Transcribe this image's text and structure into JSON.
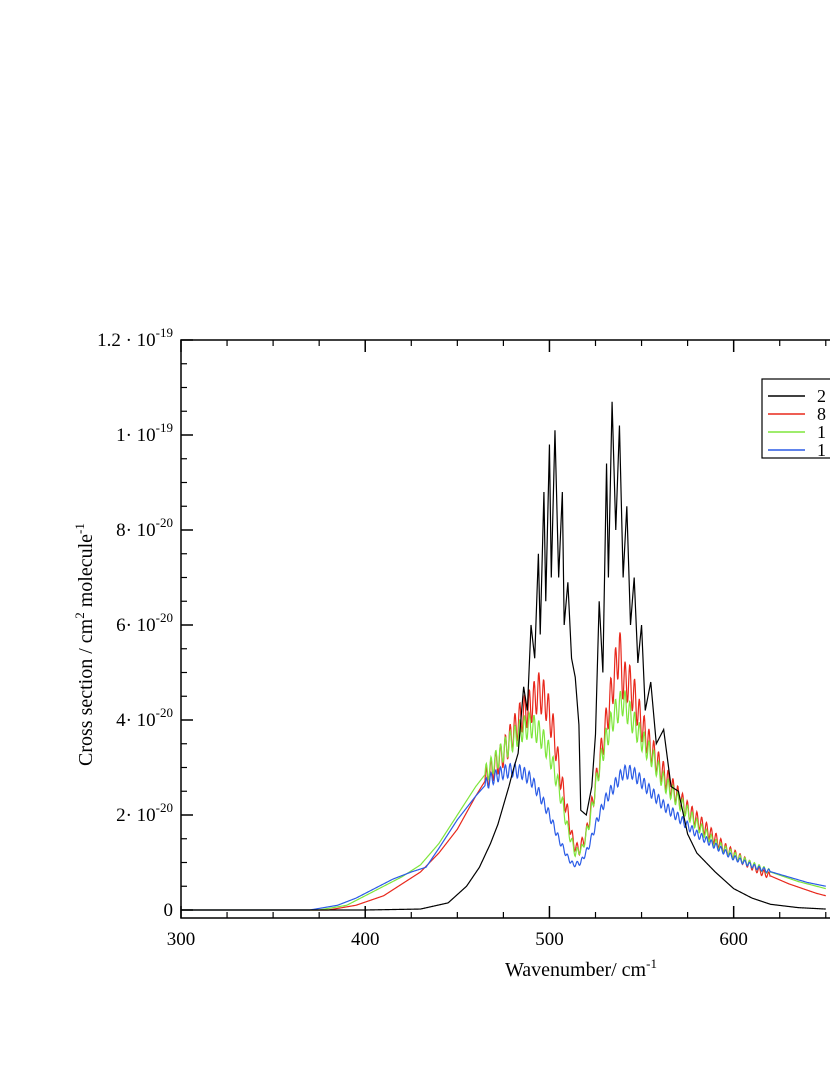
{
  "chart_data": {
    "type": "line",
    "title": "",
    "xlabel": {
      "base": "Wavenumber/ cm",
      "sup": "-1"
    },
    "ylabel": {
      "p1": "Cross section / cm",
      "sup1": "2",
      "p2": " molecule",
      "sup2": "-1"
    },
    "xlim": [
      300,
      650
    ],
    "ylim": [
      -2.5e-21,
      1.2e-19
    ],
    "x_ticks": [
      {
        "value": 300,
        "label": "300"
      },
      {
        "value": 400,
        "label": "400"
      },
      {
        "value": 500,
        "label": "500"
      },
      {
        "value": 600,
        "label": "600"
      }
    ],
    "y_ticks": [
      {
        "value": 0,
        "mant": "0",
        "exp": ""
      },
      {
        "value": 2e-20,
        "mant": "2· 10",
        "exp": "-20"
      },
      {
        "value": 4e-20,
        "mant": "4· 10",
        "exp": "-20"
      },
      {
        "value": 6e-20,
        "mant": "6· 10",
        "exp": "-20"
      },
      {
        "value": 8e-20,
        "mant": "8· 10",
        "exp": "-20"
      },
      {
        "value": 1e-19,
        "mant": "1· 10",
        "exp": "-19"
      },
      {
        "value": 1.2e-19,
        "mant": "1.2 · 10",
        "exp": "-19"
      }
    ],
    "legend_position": "top-right",
    "grid": false,
    "series": [
      {
        "name": "2",
        "color": "#000000",
        "points": [
          [
            300,
            0
          ],
          [
            400,
            0
          ],
          [
            430,
            2e-22
          ],
          [
            445,
            1.5e-21
          ],
          [
            455,
            5e-21
          ],
          [
            462,
            9e-21
          ],
          [
            468,
            1.4e-20
          ],
          [
            472,
            1.8e-20
          ],
          [
            475,
            2.2e-20
          ],
          [
            478,
            2.6e-20
          ],
          [
            480,
            2.9e-20
          ],
          [
            483,
            3.3e-20
          ],
          [
            486,
            4.7e-20
          ],
          [
            488,
            4.2e-20
          ],
          [
            490,
            6e-20
          ],
          [
            492,
            5.3e-20
          ],
          [
            494,
            7.5e-20
          ],
          [
            495,
            5.8e-20
          ],
          [
            497,
            8.8e-20
          ],
          [
            498,
            6.5e-20
          ],
          [
            500,
            9.8e-20
          ],
          [
            501,
            7e-20
          ],
          [
            503,
            1.01e-19
          ],
          [
            505,
            7e-20
          ],
          [
            507,
            8.8e-20
          ],
          [
            508,
            6e-20
          ],
          [
            510,
            6.9e-20
          ],
          [
            512,
            5.3e-20
          ],
          [
            514,
            4.9e-20
          ],
          [
            516,
            3.9e-20
          ],
          [
            517,
            2.1e-20
          ],
          [
            520,
            2e-20
          ],
          [
            523,
            2.6e-20
          ],
          [
            525,
            3.7e-20
          ],
          [
            527,
            6.5e-20
          ],
          [
            529,
            5e-20
          ],
          [
            531,
            9.4e-20
          ],
          [
            532,
            7e-20
          ],
          [
            534,
            1.07e-19
          ],
          [
            536,
            8e-20
          ],
          [
            538,
            1.02e-19
          ],
          [
            540,
            7e-20
          ],
          [
            542,
            8.5e-20
          ],
          [
            544,
            6e-20
          ],
          [
            546,
            7e-20
          ],
          [
            548,
            5.2e-20
          ],
          [
            550,
            6e-20
          ],
          [
            552,
            4.2e-20
          ],
          [
            555,
            4.8e-20
          ],
          [
            558,
            3.5e-20
          ],
          [
            562,
            3.8e-20
          ],
          [
            566,
            2.6e-20
          ],
          [
            570,
            2.5e-20
          ],
          [
            575,
            1.6e-20
          ],
          [
            580,
            1.2e-20
          ],
          [
            590,
            8e-21
          ],
          [
            600,
            4.5e-21
          ],
          [
            610,
            2.5e-21
          ],
          [
            620,
            1.2e-21
          ],
          [
            635,
            5e-22
          ],
          [
            650,
            2e-22
          ]
        ]
      },
      {
        "name": "8",
        "color": "#e8281c",
        "points": [
          [
            300,
            0
          ],
          [
            380,
            0
          ],
          [
            395,
            1e-21
          ],
          [
            410,
            3e-21
          ],
          [
            420,
            5.5e-21
          ],
          [
            430,
            8e-21
          ],
          [
            440,
            1.2e-20
          ],
          [
            450,
            1.7e-20
          ],
          [
            460,
            2.4e-20
          ],
          [
            468,
            2.9e-20
          ],
          [
            475,
            3.3e-20
          ],
          [
            480,
            3.7e-20
          ],
          [
            485,
            4.1e-20
          ],
          [
            490,
            4.3e-20
          ],
          [
            494,
            4.6e-20
          ],
          [
            498,
            4.4e-20
          ],
          [
            502,
            3.8e-20
          ],
          [
            506,
            2.8e-20
          ],
          [
            510,
            2e-20
          ],
          [
            513,
            1.4e-20
          ],
          [
            516,
            1.25e-20
          ],
          [
            520,
            1.6e-20
          ],
          [
            524,
            2.4e-20
          ],
          [
            528,
            3.3e-20
          ],
          [
            532,
            4.2e-20
          ],
          [
            536,
            5.1e-20
          ],
          [
            538,
            5.5e-20
          ],
          [
            540,
            4.8e-20
          ],
          [
            543,
            4.8e-20
          ],
          [
            546,
            4.5e-20
          ],
          [
            550,
            3.9e-20
          ],
          [
            555,
            3.4e-20
          ],
          [
            560,
            3e-20
          ],
          [
            566,
            2.6e-20
          ],
          [
            575,
            2.1e-20
          ],
          [
            585,
            1.7e-20
          ],
          [
            595,
            1.3e-20
          ],
          [
            605,
            1.05e-20
          ],
          [
            615,
            8e-21
          ],
          [
            630,
            5.5e-21
          ],
          [
            645,
            3.5e-21
          ],
          [
            650,
            3e-21
          ]
        ]
      },
      {
        "name": "1",
        "color": "#7fe63c",
        "points": [
          [
            300,
            0
          ],
          [
            375,
            0
          ],
          [
            390,
            1e-21
          ],
          [
            400,
            3e-21
          ],
          [
            410,
            5e-21
          ],
          [
            420,
            7e-21
          ],
          [
            430,
            9.5e-21
          ],
          [
            440,
            1.4e-20
          ],
          [
            450,
            2e-20
          ],
          [
            460,
            2.6e-20
          ],
          [
            470,
            3.1e-20
          ],
          [
            478,
            3.5e-20
          ],
          [
            485,
            3.8e-20
          ],
          [
            490,
            3.9e-20
          ],
          [
            495,
            3.7e-20
          ],
          [
            500,
            3.3e-20
          ],
          [
            505,
            2.6e-20
          ],
          [
            510,
            1.7e-20
          ],
          [
            514,
            1.2e-20
          ],
          [
            518,
            1.3e-20
          ],
          [
            522,
            1.9e-20
          ],
          [
            526,
            2.8e-20
          ],
          [
            530,
            3.5e-20
          ],
          [
            535,
            4.1e-20
          ],
          [
            540,
            4.4e-20
          ],
          [
            545,
            4e-20
          ],
          [
            550,
            3.6e-20
          ],
          [
            556,
            3.2e-20
          ],
          [
            562,
            2.7e-20
          ],
          [
            570,
            2.3e-20
          ],
          [
            580,
            1.8e-20
          ],
          [
            590,
            1.4e-20
          ],
          [
            600,
            1.15e-20
          ],
          [
            610,
            9.5e-21
          ],
          [
            620,
            8e-21
          ],
          [
            635,
            6e-21
          ],
          [
            650,
            4.5e-21
          ]
        ]
      },
      {
        "name": "1",
        "color": "#2b5ce6",
        "points": [
          [
            300,
            0
          ],
          [
            370,
            0
          ],
          [
            385,
            1e-21
          ],
          [
            395,
            2.5e-21
          ],
          [
            405,
            4.5e-21
          ],
          [
            415,
            6.5e-21
          ],
          [
            425,
            8e-21
          ],
          [
            433,
            9e-21
          ],
          [
            440,
            1.3e-20
          ],
          [
            450,
            1.9e-20
          ],
          [
            460,
            2.4e-20
          ],
          [
            468,
            2.75e-20
          ],
          [
            475,
            2.9e-20
          ],
          [
            480,
            2.95e-20
          ],
          [
            485,
            2.9e-20
          ],
          [
            490,
            2.75e-20
          ],
          [
            495,
            2.4e-20
          ],
          [
            500,
            2e-20
          ],
          [
            505,
            1.5e-20
          ],
          [
            510,
            1.1e-20
          ],
          [
            513,
            9.5e-21
          ],
          [
            517,
            1e-20
          ],
          [
            521,
            1.3e-20
          ],
          [
            526,
            1.9e-20
          ],
          [
            530,
            2.3e-20
          ],
          [
            535,
            2.6e-20
          ],
          [
            540,
            2.9e-20
          ],
          [
            545,
            2.9e-20
          ],
          [
            550,
            2.7e-20
          ],
          [
            556,
            2.45e-20
          ],
          [
            562,
            2.2e-20
          ],
          [
            570,
            1.95e-20
          ],
          [
            580,
            1.6e-20
          ],
          [
            590,
            1.35e-20
          ],
          [
            600,
            1.1e-20
          ],
          [
            612,
            9e-21
          ],
          [
            625,
            7.5e-21
          ],
          [
            640,
            5.8e-21
          ],
          [
            650,
            5e-21
          ]
        ]
      }
    ]
  }
}
